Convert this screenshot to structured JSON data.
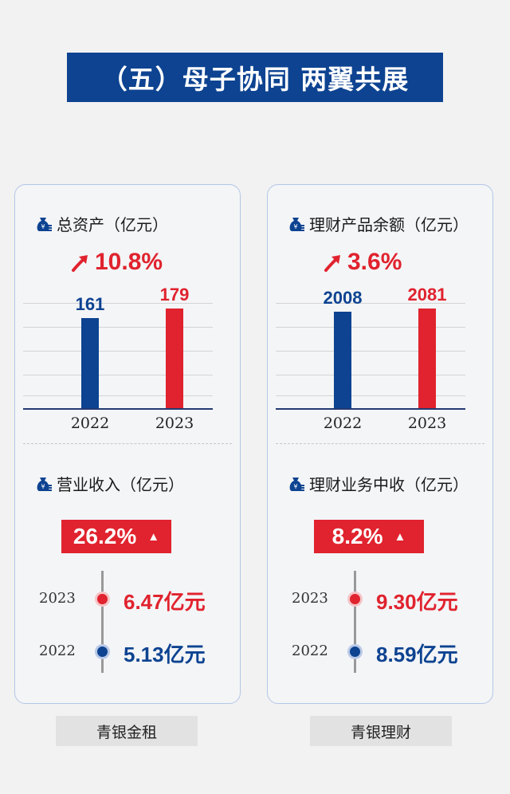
{
  "title": "（五）母子协同 两翼共展",
  "colors": {
    "brand_blue": "#0d4391",
    "accent_red": "#e0232e"
  },
  "left_card": {
    "section1": {
      "title": "总资产（亿元）",
      "growth": "10.8%",
      "chart_data": {
        "type": "bar",
        "categories": [
          "2022",
          "2023"
        ],
        "values": [
          161,
          179
        ],
        "title": "总资产（亿元）",
        "ylim": [
          0,
          200
        ]
      }
    },
    "section2": {
      "title": "营业收入（亿元）",
      "badge": "26.2%",
      "rows": [
        {
          "year": "2023",
          "value": "6.47亿元",
          "color": "#e0232e"
        },
        {
          "year": "2022",
          "value": "5.13亿元",
          "color": "#0d4391"
        }
      ]
    },
    "footer": "青银金租"
  },
  "right_card": {
    "section1": {
      "title": "理财产品余额（亿元）",
      "growth": "3.6%",
      "chart_data": {
        "type": "bar",
        "categories": [
          "2022",
          "2023"
        ],
        "values": [
          2008,
          2081
        ],
        "title": "理财产品余额（亿元）",
        "ylim": [
          0,
          2325
        ]
      }
    },
    "section2": {
      "title": "理财业务中收（亿元）",
      "badge": "8.2%",
      "rows": [
        {
          "year": "2023",
          "value": "9.30亿元",
          "color": "#e0232e"
        },
        {
          "year": "2022",
          "value": "8.59亿元",
          "color": "#0d4391"
        }
      ]
    },
    "footer": "青银理财"
  }
}
